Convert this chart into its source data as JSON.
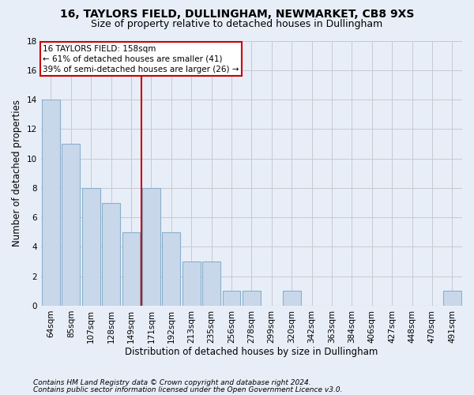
{
  "title": "16, TAYLORS FIELD, DULLINGHAM, NEWMARKET, CB8 9XS",
  "subtitle": "Size of property relative to detached houses in Dullingham",
  "xlabel": "Distribution of detached houses by size in Dullingham",
  "ylabel": "Number of detached properties",
  "categories": [
    "64sqm",
    "85sqm",
    "107sqm",
    "128sqm",
    "149sqm",
    "171sqm",
    "192sqm",
    "213sqm",
    "235sqm",
    "256sqm",
    "278sqm",
    "299sqm",
    "320sqm",
    "342sqm",
    "363sqm",
    "384sqm",
    "406sqm",
    "427sqm",
    "448sqm",
    "470sqm",
    "491sqm"
  ],
  "values": [
    14,
    11,
    8,
    7,
    5,
    8,
    5,
    3,
    3,
    1,
    1,
    0,
    1,
    0,
    0,
    0,
    0,
    0,
    0,
    0,
    1
  ],
  "bar_color": "#c8d8ea",
  "bar_edge_color": "#8ab0cc",
  "vline_x": 4.5,
  "vline_color": "#cc0000",
  "annotation_text": "16 TAYLORS FIELD: 158sqm\n← 61% of detached houses are smaller (41)\n39% of semi-detached houses are larger (26) →",
  "annotation_box_color": "#ffffff",
  "annotation_box_edge": "#cc0000",
  "ylim": [
    0,
    18
  ],
  "yticks": [
    0,
    2,
    4,
    6,
    8,
    10,
    12,
    14,
    16,
    18
  ],
  "grid_color": "#c8c8d0",
  "bg_color": "#e8eef8",
  "footer1": "Contains HM Land Registry data © Crown copyright and database right 2024.",
  "footer2": "Contains public sector information licensed under the Open Government Licence v3.0.",
  "title_fontsize": 10,
  "subtitle_fontsize": 9,
  "axis_label_fontsize": 8.5,
  "tick_fontsize": 7.5,
  "annotation_fontsize": 7.5,
  "footer_fontsize": 6.5
}
